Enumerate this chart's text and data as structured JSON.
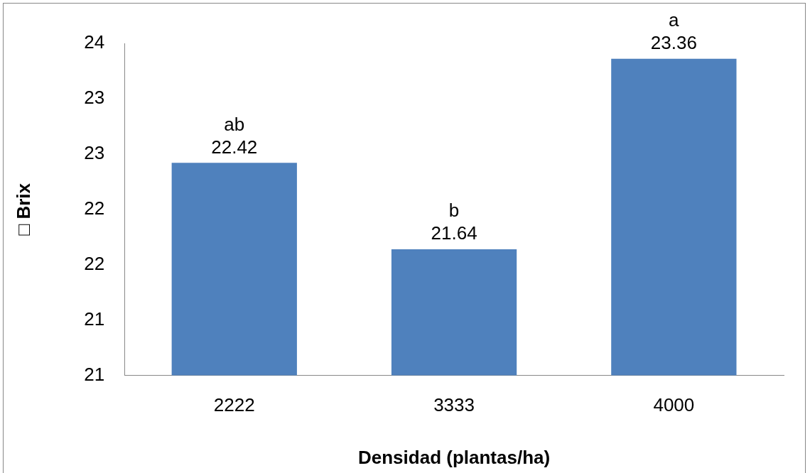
{
  "chart_data": {
    "type": "bar",
    "xlabel": "Densidad (plantas/ha)",
    "ylabel": "□ Brix",
    "categories": [
      "2222",
      "3333",
      "4000"
    ],
    "values": [
      22.42,
      21.64,
      23.36
    ],
    "color": "#4f81bd",
    "ylim": [
      20.5,
      23.5
    ],
    "yticks": [
      {
        "value": 20.5,
        "label": "21"
      },
      {
        "value": 21,
        "label": "21"
      },
      {
        "value": 21.5,
        "label": "22"
      },
      {
        "value": 22,
        "label": "22"
      },
      {
        "value": 22.5,
        "label": "23"
      },
      {
        "value": 23,
        "label": "23"
      },
      {
        "value": 23.5,
        "label": "24"
      }
    ],
    "data_labels": true,
    "annotations": [
      {
        "text": "ab",
        "x": "2222",
        "y": 22.42
      },
      {
        "text": "b",
        "x": "3333",
        "y": 21.64
      },
      {
        "text": "a",
        "x": "4000",
        "y": 23.36
      }
    ]
  }
}
